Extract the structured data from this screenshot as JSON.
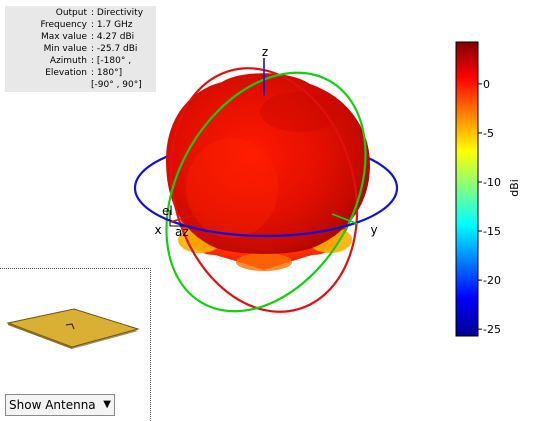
{
  "info": {
    "rows": [
      {
        "key": "Output",
        "value": ": Directivity"
      },
      {
        "key": "Frequency",
        "value": ": 1.7 GHz"
      },
      {
        "key": "Max value",
        "value": ": 4.27 dBi"
      },
      {
        "key": "Min value",
        "value": ": -25.7 dBi"
      },
      {
        "key": "Azimuth",
        "value": ": [-180° ,"
      },
      {
        "key": "Elevation",
        "value": ": 180°]"
      }
    ],
    "continuation": "[-90° , 90°]"
  },
  "chart_data": {
    "type": "3d-radiation-pattern",
    "output": "Directivity",
    "frequency_ghz": 1.7,
    "max_dbi": 4.27,
    "min_dbi": -25.7,
    "azimuth_range_deg": [
      -180,
      180
    ],
    "elevation_range_deg": [
      -90,
      90
    ],
    "axis_labels": [
      "x",
      "y",
      "z",
      "az",
      "el"
    ],
    "colorbar": {
      "label": "dBi",
      "ticks": [
        "0",
        "-5",
        "-10",
        "-15",
        "-20",
        "-25"
      ],
      "tick_values": [
        0,
        -5,
        -10,
        -15,
        -20,
        -25
      ],
      "range": [
        -25.7,
        4.27
      ],
      "colormap": "jet"
    },
    "great_circles": [
      {
        "plane": "azimuth",
        "color": "#1010e0"
      },
      {
        "plane": "elevation-xz",
        "color": "#e01010"
      },
      {
        "plane": "elevation-yz",
        "color": "#10d010"
      }
    ]
  },
  "controls": {
    "view_select": "Show Antenna",
    "arrow": "▼"
  },
  "antenna": {
    "patch_color": "#d9b034"
  }
}
